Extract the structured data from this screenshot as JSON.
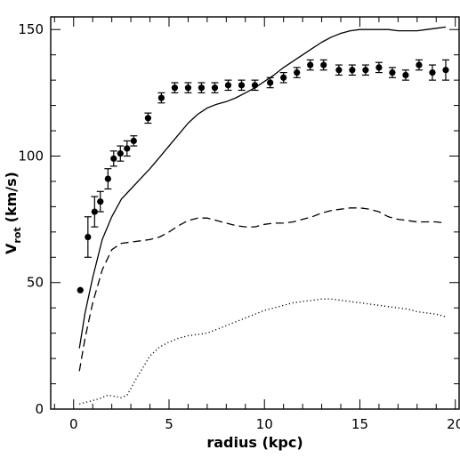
{
  "chart_data": {
    "type": "scatter",
    "title": "",
    "xlabel": "radius (kpc)",
    "ylabel": {
      "main": "V",
      "sub": "rot",
      "unit": "(km/s)"
    },
    "xlim": [
      -1.2,
      20.2
    ],
    "ylim": [
      0,
      155
    ],
    "xticks": [
      0,
      5,
      10,
      15,
      20
    ],
    "yticks": [
      0,
      50,
      100,
      150
    ],
    "grid": false,
    "legend": "none",
    "series": [
      {
        "style": "points-with-errorbars",
        "color": "#000000",
        "points": [
          {
            "x": 0.35,
            "y": 47,
            "err": 0
          },
          {
            "x": 0.75,
            "y": 68,
            "err": 8
          },
          {
            "x": 1.1,
            "y": 78,
            "err": 6
          },
          {
            "x": 1.4,
            "y": 82,
            "err": 4
          },
          {
            "x": 1.8,
            "y": 91,
            "err": 4
          },
          {
            "x": 2.1,
            "y": 99,
            "err": 3
          },
          {
            "x": 2.45,
            "y": 101,
            "err": 3
          },
          {
            "x": 2.8,
            "y": 103,
            "err": 3
          },
          {
            "x": 3.15,
            "y": 106,
            "err": 2
          },
          {
            "x": 3.9,
            "y": 115,
            "err": 2
          },
          {
            "x": 4.6,
            "y": 123,
            "err": 2
          },
          {
            "x": 5.3,
            "y": 127,
            "err": 2
          },
          {
            "x": 6.0,
            "y": 127,
            "err": 2
          },
          {
            "x": 6.7,
            "y": 127,
            "err": 2
          },
          {
            "x": 7.4,
            "y": 127,
            "err": 2
          },
          {
            "x": 8.1,
            "y": 128,
            "err": 2
          },
          {
            "x": 8.8,
            "y": 128,
            "err": 2
          },
          {
            "x": 9.5,
            "y": 128,
            "err": 2
          },
          {
            "x": 10.3,
            "y": 129,
            "err": 2
          },
          {
            "x": 11.0,
            "y": 131,
            "err": 2
          },
          {
            "x": 11.7,
            "y": 133,
            "err": 2
          },
          {
            "x": 12.4,
            "y": 136,
            "err": 2
          },
          {
            "x": 13.1,
            "y": 136,
            "err": 2
          },
          {
            "x": 13.9,
            "y": 134,
            "err": 2
          },
          {
            "x": 14.6,
            "y": 134,
            "err": 2
          },
          {
            "x": 15.3,
            "y": 134,
            "err": 2
          },
          {
            "x": 16.0,
            "y": 135,
            "err": 2
          },
          {
            "x": 16.7,
            "y": 133,
            "err": 2
          },
          {
            "x": 17.4,
            "y": 132,
            "err": 2
          },
          {
            "x": 18.1,
            "y": 136,
            "err": 2
          },
          {
            "x": 18.8,
            "y": 133,
            "err": 3
          },
          {
            "x": 19.5,
            "y": 134,
            "err": 4
          }
        ]
      },
      {
        "style": "solid",
        "color": "#000000",
        "x": [
          0.3,
          0.6,
          1.0,
          1.5,
          2.0,
          2.5,
          3.0,
          3.5,
          4.0,
          4.5,
          5.0,
          5.5,
          6.0,
          6.5,
          7.0,
          7.5,
          8.0,
          8.5,
          9.0,
          9.5,
          10.0,
          10.5,
          11.0,
          11.5,
          12.0,
          12.5,
          13.0,
          13.5,
          14.0,
          14.5,
          15.0,
          15.5,
          16.0,
          16.5,
          17.0,
          17.5,
          18.0,
          18.5,
          19.0,
          19.5
        ],
        "y": [
          24,
          38,
          52,
          67,
          76,
          83,
          87,
          91,
          95,
          99.5,
          104,
          108.5,
          113,
          116.5,
          119,
          120.5,
          121.5,
          123,
          125,
          127,
          129.5,
          132,
          135,
          137.5,
          140,
          142.5,
          145,
          147,
          148.5,
          149.5,
          150,
          150,
          150,
          150,
          149.5,
          149.5,
          149.5,
          150,
          150.5,
          151
        ]
      },
      {
        "style": "dashed",
        "color": "#000000",
        "x": [
          0.3,
          0.6,
          1.0,
          1.5,
          2.0,
          2.5,
          3.0,
          3.5,
          4.0,
          4.5,
          5.0,
          5.5,
          6.0,
          6.5,
          7.0,
          7.5,
          8.0,
          8.5,
          9.0,
          9.5,
          10.0,
          10.5,
          11.0,
          11.5,
          12.0,
          12.5,
          13.0,
          13.5,
          14.0,
          14.5,
          15.0,
          15.5,
          16.0,
          16.5,
          17.0,
          17.5,
          18.0,
          18.5,
          19.0,
          19.5
        ],
        "y": [
          15,
          28,
          42,
          55,
          63,
          65.5,
          66,
          66.5,
          67,
          68,
          70,
          72.5,
          74.5,
          75.5,
          75.5,
          74.5,
          73.5,
          72.5,
          72,
          72,
          73,
          73.5,
          73.5,
          74,
          75,
          76,
          77.5,
          78.5,
          79,
          79.5,
          79.5,
          79,
          78,
          76,
          75,
          74.5,
          74,
          74,
          74,
          73.5
        ]
      },
      {
        "style": "dotted",
        "color": "#000000",
        "x": [
          0.3,
          0.8,
          1.3,
          1.8,
          2.2,
          2.5,
          2.8,
          3.2,
          3.6,
          4.0,
          4.5,
          5.0,
          5.5,
          6.0,
          6.5,
          7.0,
          7.5,
          8.0,
          8.5,
          9.0,
          9.5,
          10.0,
          10.5,
          11.0,
          11.5,
          12.0,
          12.5,
          13.0,
          13.5,
          14.0,
          14.5,
          15.0,
          15.5,
          16.0,
          16.5,
          17.0,
          17.5,
          18.0,
          18.5,
          19.0,
          19.5
        ],
        "y": [
          2,
          3,
          4,
          5.5,
          5,
          4.5,
          5.5,
          11,
          16,
          21,
          24.5,
          26.5,
          28,
          29,
          29.5,
          30,
          31.5,
          33,
          34.5,
          36,
          37.5,
          39,
          40,
          41,
          42,
          42.5,
          43,
          43.5,
          43.5,
          43,
          42.5,
          42,
          41.5,
          41,
          40.5,
          40,
          39.5,
          38.5,
          38,
          37.5,
          36.5
        ]
      }
    ]
  }
}
